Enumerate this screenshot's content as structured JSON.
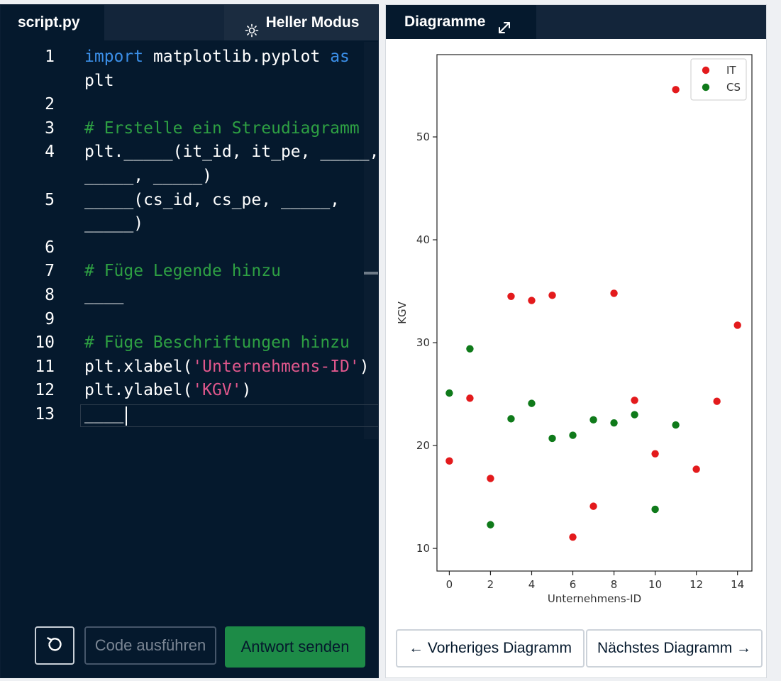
{
  "editor": {
    "file_tab": "script.py",
    "mode_button": "Heller Modus",
    "lines": [
      {
        "n": "1",
        "html": "<span class=\"kw\">import</span> matplotlib.pyplot <span class=\"kw\">as</span>"
      },
      {
        "n": "",
        "html": "plt"
      },
      {
        "n": "2",
        "html": ""
      },
      {
        "n": "3",
        "html": "<span class=\"cm\"># Erstelle ein Streudiagramm</span>"
      },
      {
        "n": "4",
        "html": "plt._____(it_id, it_pe, _____,"
      },
      {
        "n": "",
        "html": "_____, _____)"
      },
      {
        "n": "5",
        "html": "_____(cs_id, cs_pe, _____,"
      },
      {
        "n": "",
        "html": "_____)"
      },
      {
        "n": "6",
        "html": ""
      },
      {
        "n": "7",
        "html": "<span class=\"cm\"># Füge Legende hinzu</span>"
      },
      {
        "n": "8",
        "html": "____"
      },
      {
        "n": "9",
        "html": ""
      },
      {
        "n": "10",
        "html": "<span class=\"cm\"># Füge Beschriftungen hinzu</span>"
      },
      {
        "n": "11",
        "html": "plt.xlabel(<span class=\"str\">'Unternehmens-ID'</span>)"
      },
      {
        "n": "12",
        "html": "plt.ylabel(<span class=\"str\">'KGV'</span>)"
      },
      {
        "n": "13",
        "html": "____"
      }
    ],
    "run_button": "Code ausführen",
    "submit_button": "Antwort senden"
  },
  "plot_panel": {
    "tab_label": "Diagramme",
    "prev_button": "← Vorheriges Diagramm",
    "next_button": "Nächstes Diagramm →"
  },
  "chart_data": {
    "type": "scatter",
    "xlabel": "Unternehmens-ID",
    "ylabel": "KGV",
    "xlim": [
      -0.6,
      14.7
    ],
    "ylim": [
      7.8,
      58
    ],
    "xticks": [
      0,
      2,
      4,
      6,
      8,
      10,
      12,
      14
    ],
    "yticks": [
      10,
      20,
      30,
      40,
      50
    ],
    "legend_position": "top-right",
    "series": [
      {
        "name": "IT",
        "color": "#e31a1c",
        "x": [
          0,
          1,
          2,
          3,
          4,
          5,
          6,
          7,
          8,
          9,
          10,
          11,
          12,
          13,
          14
        ],
        "y": [
          18.5,
          24.6,
          16.8,
          34.5,
          34.1,
          34.6,
          11.1,
          14.1,
          34.8,
          24.4,
          19.2,
          54.6,
          17.7,
          24.3,
          31.7
        ]
      },
      {
        "name": "CS",
        "color": "#0f7a1a",
        "x": [
          0,
          1,
          2,
          3,
          4,
          5,
          6,
          7,
          8,
          9,
          10,
          11
        ],
        "y": [
          25.1,
          29.4,
          12.3,
          22.6,
          24.1,
          20.7,
          21.0,
          22.5,
          22.2,
          23.0,
          13.8,
          22.0
        ]
      }
    ]
  }
}
